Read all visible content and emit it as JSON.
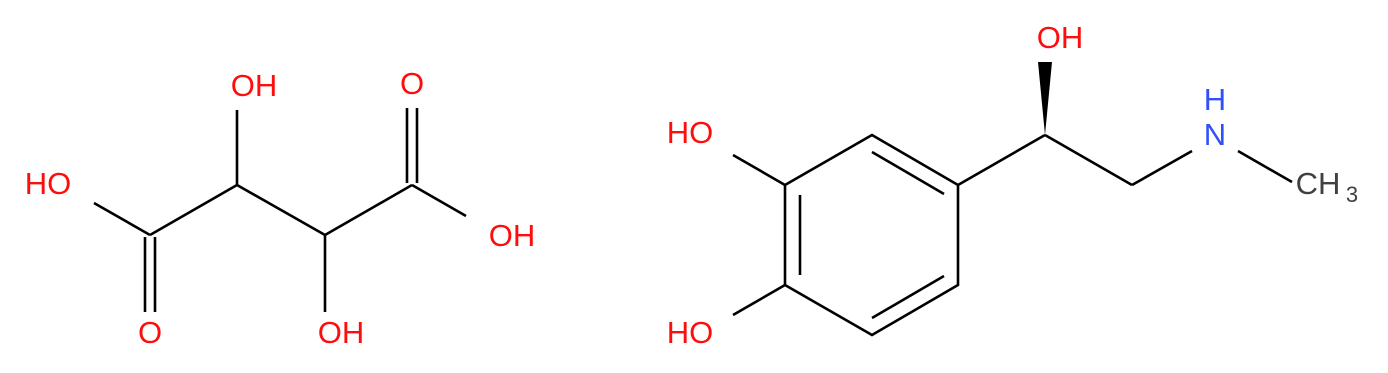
{
  "molecules": [
    {
      "name": "tartaric acid",
      "labels": [
        "HO",
        "O",
        "OH",
        "OH",
        "O",
        "OH"
      ]
    },
    {
      "name": "epinephrine",
      "labels": [
        "HO",
        "HO",
        "OH",
        "N",
        "H",
        "CH",
        "3"
      ]
    }
  ]
}
